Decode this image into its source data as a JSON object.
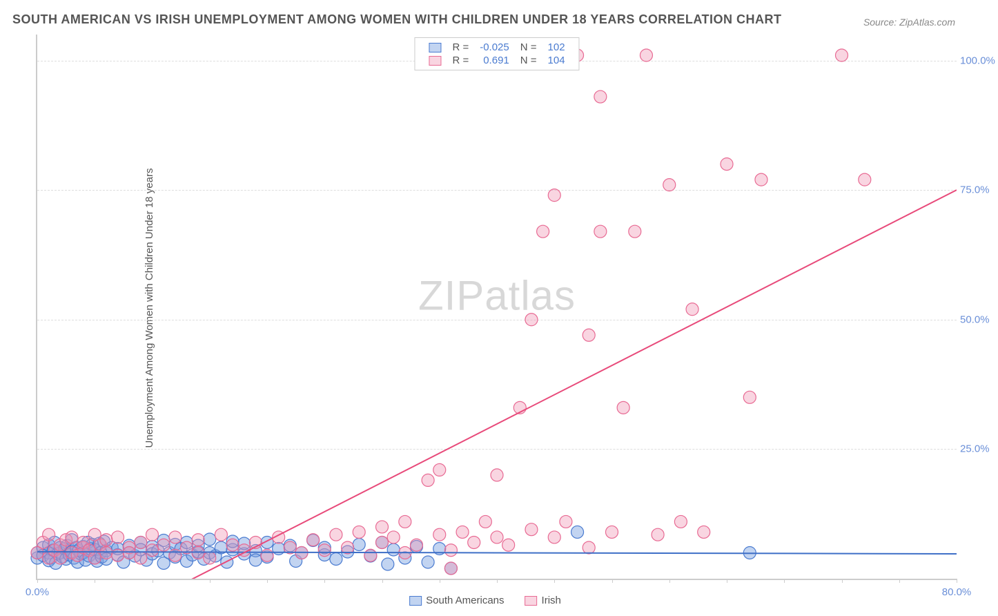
{
  "title": "SOUTH AMERICAN VS IRISH UNEMPLOYMENT AMONG WOMEN WITH CHILDREN UNDER 18 YEARS CORRELATION CHART",
  "source": "Source: ZipAtlas.com",
  "ylabel": "Unemployment Among Women with Children Under 18 years",
  "watermark_a": "ZIP",
  "watermark_b": "atlas",
  "chart": {
    "type": "scatter",
    "background_color": "#ffffff",
    "grid_color": "#dddddd",
    "axis_color": "#cccccc",
    "tick_color": "#6a8fd8",
    "xlim": [
      0,
      80
    ],
    "ylim": [
      0,
      105
    ],
    "x_ticks": [
      0,
      5,
      10,
      15,
      20,
      25,
      30,
      35,
      40,
      45,
      50,
      55,
      60,
      65,
      70,
      75,
      80
    ],
    "x_tick_labels": {
      "0": "0.0%",
      "80": "80.0%"
    },
    "y_ticks": [
      25,
      50,
      75,
      100
    ],
    "y_tick_labels": {
      "25": "25.0%",
      "50": "50.0%",
      "75": "75.0%",
      "100": "100.0%"
    },
    "marker_radius": 9,
    "marker_stroke_width": 1.2,
    "line_width": 2,
    "series": [
      {
        "name": "South Americans",
        "legend_label": "South Americans",
        "fill": "rgba(120,160,225,0.45)",
        "stroke": "#4a7bd0",
        "R": "-0.025",
        "N": "102",
        "trend": {
          "x1": 0,
          "y1": 5.2,
          "x2": 80,
          "y2": 4.8,
          "color": "#3e6fc7"
        },
        "points": [
          [
            0,
            4
          ],
          [
            0,
            5
          ],
          [
            0.5,
            6
          ],
          [
            0.5,
            4.5
          ],
          [
            1,
            5
          ],
          [
            1,
            3.5
          ],
          [
            1,
            6.5
          ],
          [
            1.2,
            4
          ],
          [
            1.4,
            5.5
          ],
          [
            1.5,
            7
          ],
          [
            1.6,
            3
          ],
          [
            1.8,
            4.8
          ],
          [
            2,
            5
          ],
          [
            2,
            6
          ],
          [
            2.2,
            4.2
          ],
          [
            2.4,
            5.8
          ],
          [
            2.5,
            3.8
          ],
          [
            2.6,
            6.4
          ],
          [
            2.8,
            4.6
          ],
          [
            3,
            5.2
          ],
          [
            3,
            7.5
          ],
          [
            3.2,
            4
          ],
          [
            3.4,
            6
          ],
          [
            3.5,
            3.2
          ],
          [
            3.6,
            5.4
          ],
          [
            3.8,
            4.8
          ],
          [
            4,
            6.2
          ],
          [
            4,
            5
          ],
          [
            4.2,
            3.6
          ],
          [
            4.4,
            7
          ],
          [
            4.5,
            4.4
          ],
          [
            4.6,
            5.8
          ],
          [
            4.8,
            6.6
          ],
          [
            5,
            4
          ],
          [
            5,
            5.6
          ],
          [
            5.2,
            3.4
          ],
          [
            5.4,
            6.8
          ],
          [
            5.5,
            5
          ],
          [
            5.6,
            4.2
          ],
          [
            5.8,
            7.2
          ],
          [
            6,
            5.4
          ],
          [
            6,
            3.8
          ],
          [
            6.5,
            6
          ],
          [
            7,
            4.6
          ],
          [
            7,
            5.8
          ],
          [
            7.5,
            3.2
          ],
          [
            8,
            6.4
          ],
          [
            8,
            5
          ],
          [
            8.5,
            4.4
          ],
          [
            9,
            7
          ],
          [
            9,
            5.6
          ],
          [
            9.5,
            3.6
          ],
          [
            10,
            6.2
          ],
          [
            10,
            4.8
          ],
          [
            10.5,
            5.4
          ],
          [
            11,
            3
          ],
          [
            11,
            7.4
          ],
          [
            11.5,
            5
          ],
          [
            12,
            4.2
          ],
          [
            12,
            6.6
          ],
          [
            12.5,
            5.8
          ],
          [
            13,
            3.4
          ],
          [
            13,
            7
          ],
          [
            13.5,
            4.6
          ],
          [
            14,
            5.2
          ],
          [
            14,
            6.4
          ],
          [
            14.5,
            3.8
          ],
          [
            15,
            7.6
          ],
          [
            15,
            5
          ],
          [
            15.5,
            4.4
          ],
          [
            16,
            6
          ],
          [
            16.5,
            3.2
          ],
          [
            17,
            5.6
          ],
          [
            17,
            7.2
          ],
          [
            18,
            4.8
          ],
          [
            18,
            6.8
          ],
          [
            19,
            5.4
          ],
          [
            19,
            3.6
          ],
          [
            20,
            7
          ],
          [
            20,
            4.2
          ],
          [
            21,
            5.8
          ],
          [
            22,
            6.4
          ],
          [
            22.5,
            3.4
          ],
          [
            23,
            5
          ],
          [
            24,
            7.4
          ],
          [
            25,
            4.6
          ],
          [
            25,
            6
          ],
          [
            26,
            3.8
          ],
          [
            27,
            5.2
          ],
          [
            28,
            6.6
          ],
          [
            29,
            4.4
          ],
          [
            30,
            7
          ],
          [
            30.5,
            2.8
          ],
          [
            31,
            5.6
          ],
          [
            32,
            4
          ],
          [
            33,
            6.2
          ],
          [
            34,
            3.2
          ],
          [
            35,
            5.8
          ],
          [
            36,
            2
          ],
          [
            47,
            9
          ],
          [
            62,
            5
          ]
        ]
      },
      {
        "name": "Irish",
        "legend_label": "Irish",
        "fill": "rgba(240,150,180,0.40)",
        "stroke": "#e86a93",
        "R": "0.691",
        "N": "104",
        "trend": {
          "x1": 10,
          "y1": -4,
          "x2": 80,
          "y2": 75,
          "color": "#e84a7a"
        },
        "points": [
          [
            0,
            5
          ],
          [
            0.5,
            7
          ],
          [
            1,
            4
          ],
          [
            1,
            8.5
          ],
          [
            1.5,
            5.5
          ],
          [
            2,
            6.5
          ],
          [
            2,
            4
          ],
          [
            2.5,
            7.5
          ],
          [
            3,
            5
          ],
          [
            3,
            8
          ],
          [
            3.5,
            4.5
          ],
          [
            4,
            6
          ],
          [
            4,
            7
          ],
          [
            4.5,
            5.5
          ],
          [
            5,
            8.5
          ],
          [
            5,
            4
          ],
          [
            5.5,
            6.5
          ],
          [
            6,
            5
          ],
          [
            6,
            7.5
          ],
          [
            7,
            4.5
          ],
          [
            7,
            8
          ],
          [
            8,
            6
          ],
          [
            8,
            5
          ],
          [
            9,
            7
          ],
          [
            9,
            4
          ],
          [
            10,
            8.5
          ],
          [
            10,
            5.5
          ],
          [
            11,
            6.5
          ],
          [
            12,
            4.5
          ],
          [
            12,
            8
          ],
          [
            13,
            6
          ],
          [
            14,
            5
          ],
          [
            14,
            7.5
          ],
          [
            15,
            4
          ],
          [
            16,
            8.5
          ],
          [
            17,
            6.5
          ],
          [
            18,
            5.5
          ],
          [
            19,
            7
          ],
          [
            20,
            4.5
          ],
          [
            21,
            8
          ],
          [
            22,
            6
          ],
          [
            23,
            5
          ],
          [
            24,
            7.5
          ],
          [
            25,
            5.5
          ],
          [
            26,
            8.5
          ],
          [
            27,
            6
          ],
          [
            28,
            9
          ],
          [
            29,
            4.5
          ],
          [
            30,
            7
          ],
          [
            30,
            10
          ],
          [
            31,
            8
          ],
          [
            32,
            5
          ],
          [
            32,
            11
          ],
          [
            33,
            6.5
          ],
          [
            34,
            19
          ],
          [
            35,
            8.5
          ],
          [
            35,
            21
          ],
          [
            36,
            5.5
          ],
          [
            36,
            2
          ],
          [
            37,
            9
          ],
          [
            38,
            7
          ],
          [
            39,
            11
          ],
          [
            40,
            8
          ],
          [
            40,
            20
          ],
          [
            41,
            6.5
          ],
          [
            42,
            33
          ],
          [
            43,
            9.5
          ],
          [
            43,
            50
          ],
          [
            44,
            67
          ],
          [
            45,
            8
          ],
          [
            45,
            74
          ],
          [
            46,
            11
          ],
          [
            47,
            101
          ],
          [
            48,
            47
          ],
          [
            48,
            6
          ],
          [
            49,
            93
          ],
          [
            49,
            67
          ],
          [
            50,
            9
          ],
          [
            51,
            33
          ],
          [
            52,
            67
          ],
          [
            53,
            101
          ],
          [
            54,
            8.5
          ],
          [
            55,
            76
          ],
          [
            56,
            11
          ],
          [
            57,
            52
          ],
          [
            58,
            9
          ],
          [
            60,
            80
          ],
          [
            62,
            35
          ],
          [
            63,
            77
          ],
          [
            70,
            101
          ],
          [
            72,
            77
          ]
        ]
      }
    ]
  },
  "legend_r_label": "R =",
  "legend_n_label": "N ="
}
